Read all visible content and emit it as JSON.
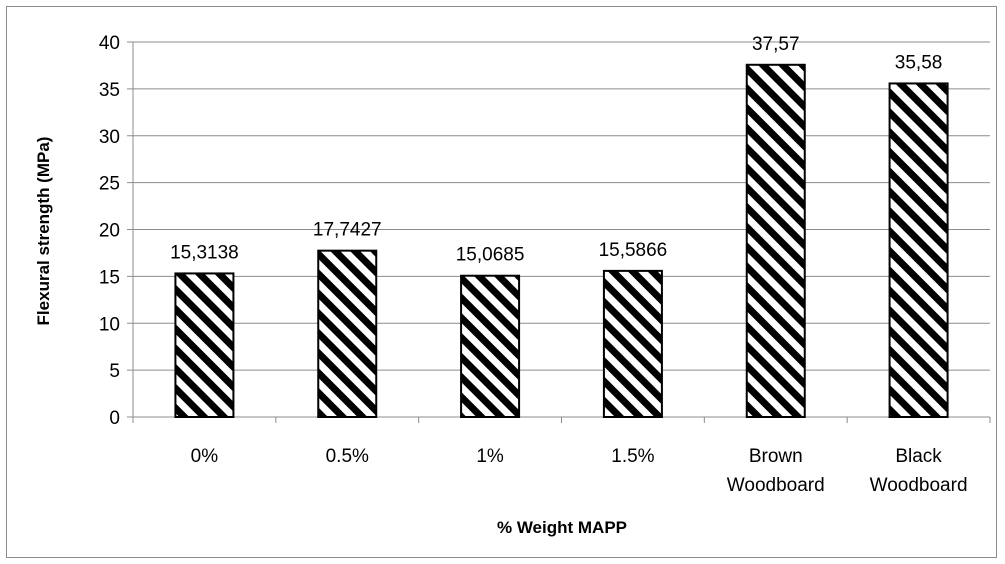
{
  "chart_data": {
    "type": "bar",
    "categories": [
      [
        "0%"
      ],
      [
        "0.5%"
      ],
      [
        "1%"
      ],
      [
        "1.5%"
      ],
      [
        "Brown",
        "Woodboard"
      ],
      [
        "Black",
        "Woodboard"
      ]
    ],
    "values": [
      15.3138,
      17.7427,
      15.0685,
      15.5866,
      37.57,
      35.58
    ],
    "data_labels": [
      "15,3138",
      "17,7427",
      "15,0685",
      "15,5866",
      "37,57",
      "35,58"
    ],
    "xlabel": "% Weight MAPP",
    "ylabel": "Flexural strength (MPa)",
    "ylim": [
      0,
      40
    ],
    "yticks": [
      0,
      5,
      10,
      15,
      20,
      25,
      30,
      35,
      40
    ],
    "grid": true,
    "legend": "none",
    "bar_fill": "diagonal-stripes",
    "colors": {
      "bar_stroke": "#000000",
      "stripe": "#000000",
      "grid": "#8c8c8c",
      "axis": "#8c8c8c"
    }
  }
}
